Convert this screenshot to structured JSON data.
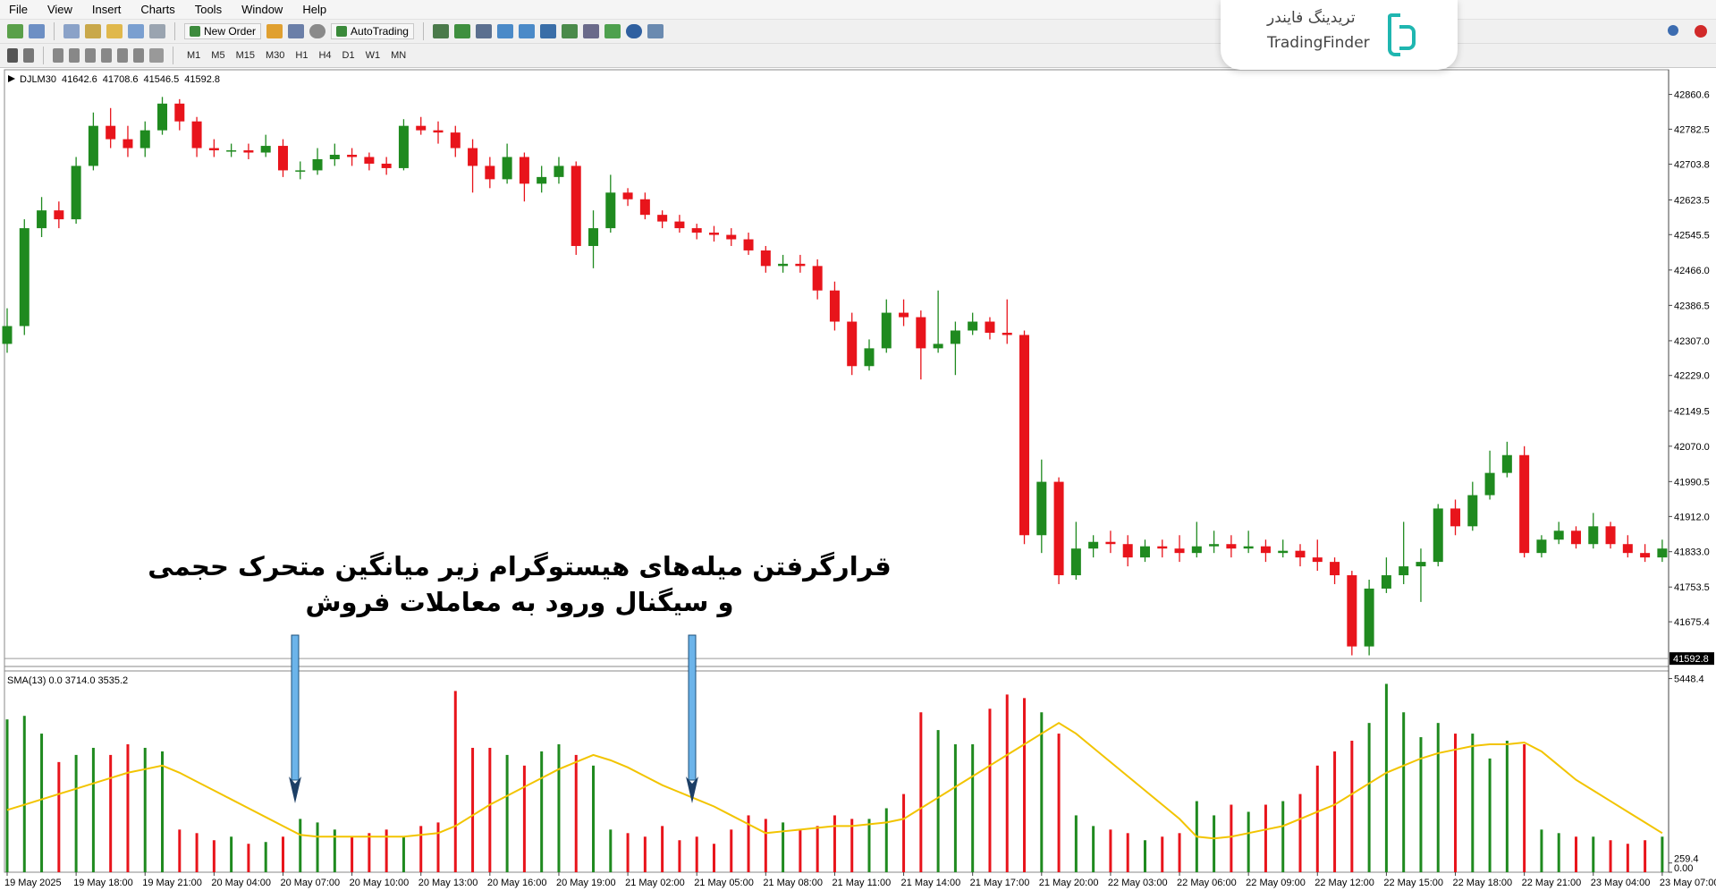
{
  "menu": [
    "File",
    "View",
    "Insert",
    "Charts",
    "Tools",
    "Window",
    "Help"
  ],
  "toolbar": {
    "new_order": "New Order",
    "autotrading": "AutoTrading"
  },
  "timeframes": [
    "M1",
    "M5",
    "M15",
    "M30",
    "H1",
    "H4",
    "D1",
    "W1",
    "MN"
  ],
  "logo": {
    "name_fa": "تریدینگ فایندر",
    "name_en": "TradingFinder"
  },
  "annotation": {
    "line1": "قرارگرفتن میله‌های هیستوگرام زیر میانگین متحرک حجمی",
    "line2": "و سیگنال ورود به معاملات فروش"
  },
  "chart_data": [
    {
      "type": "candlestick",
      "symbol": "DJLM30",
      "header_values": [
        41642.6,
        41708.6,
        41546.5,
        41592.8
      ],
      "up_color": "#1f8a1f",
      "down_color": "#e8141b",
      "last_price": 41592.8,
      "ylim": [
        41577,
        42912
      ],
      "yticks": [
        42860.6,
        42782.5,
        42703.8,
        42623.5,
        42545.5,
        {
          "value": 42466,
          "label": "42466.0"
        },
        42386.5,
        {
          "value": 42307,
          "label": "42307.0"
        },
        {
          "value": 42229,
          "label": "42229.0"
        },
        42149.5,
        {
          "value": 42070,
          "label": "42070.0"
        },
        41990.5,
        {
          "value": 41912,
          "label": "41912.0"
        },
        {
          "value": 41833,
          "label": "41833.0"
        },
        41753.5,
        41675.4
      ],
      "ohlc": [
        [
          42300,
          42380,
          42280,
          42340
        ],
        [
          42340,
          42580,
          42320,
          42560
        ],
        [
          42560,
          42630,
          42540,
          42600
        ],
        [
          42600,
          42620,
          42560,
          42580
        ],
        [
          42580,
          42720,
          42570,
          42700
        ],
        [
          42700,
          42820,
          42690,
          42790
        ],
        [
          42790,
          42830,
          42740,
          42760
        ],
        [
          42760,
          42790,
          42720,
          42740
        ],
        [
          42740,
          42800,
          42720,
          42780
        ],
        [
          42780,
          42855,
          42770,
          42840
        ],
        [
          42840,
          42850,
          42780,
          42800
        ],
        [
          42800,
          42810,
          42720,
          42740
        ],
        [
          42740,
          42760,
          42720,
          42735
        ],
        [
          42735,
          42750,
          42720,
          42735
        ],
        [
          42735,
          42750,
          42715,
          42730
        ],
        [
          42730,
          42770,
          42720,
          42745
        ],
        [
          42745,
          42760,
          42675,
          42690
        ],
        [
          42690,
          42710,
          42670,
          42690
        ],
        [
          42690,
          42740,
          42680,
          42715
        ],
        [
          42715,
          42750,
          42700,
          42725
        ],
        [
          42725,
          42740,
          42700,
          42720
        ],
        [
          42720,
          42730,
          42690,
          42705
        ],
        [
          42705,
          42720,
          42680,
          42695
        ],
        [
          42695,
          42805,
          42690,
          42790
        ],
        [
          42790,
          42810,
          42770,
          42780
        ],
        [
          42780,
          42800,
          42750,
          42775
        ],
        [
          42775,
          42790,
          42720,
          42740
        ],
        [
          42740,
          42760,
          42640,
          42700
        ],
        [
          42700,
          42720,
          42650,
          42670
        ],
        [
          42670,
          42750,
          42660,
          42720
        ],
        [
          42720,
          42730,
          42620,
          42660
        ],
        [
          42660,
          42700,
          42640,
          42675
        ],
        [
          42675,
          42720,
          42660,
          42700
        ],
        [
          42700,
          42710,
          42500,
          42520
        ],
        [
          42520,
          42600,
          42470,
          42560
        ],
        [
          42560,
          42680,
          42550,
          42640
        ],
        [
          42640,
          42650,
          42610,
          42625
        ],
        [
          42625,
          42640,
          42580,
          42590
        ],
        [
          42590,
          42600,
          42560,
          42575
        ],
        [
          42575,
          42590,
          42550,
          42560
        ],
        [
          42560,
          42570,
          42535,
          42550
        ],
        [
          42550,
          42565,
          42530,
          42545
        ],
        [
          42545,
          42560,
          42520,
          42535
        ],
        [
          42535,
          42550,
          42500,
          42510
        ],
        [
          42510,
          42520,
          42460,
          42475
        ],
        [
          42475,
          42500,
          42460,
          42480
        ],
        [
          42480,
          42500,
          42460,
          42475
        ],
        [
          42475,
          42490,
          42400,
          42420
        ],
        [
          42420,
          42440,
          42330,
          42350
        ],
        [
          42350,
          42370,
          42230,
          42250
        ],
        [
          42250,
          42310,
          42240,
          42290
        ],
        [
          42290,
          42400,
          42280,
          42370
        ],
        [
          42370,
          42400,
          42340,
          42360
        ],
        [
          42360,
          42375,
          42220,
          42290
        ],
        [
          42290,
          42420,
          42280,
          42300
        ],
        [
          42300,
          42350,
          42230,
          42330
        ],
        [
          42330,
          42370,
          42320,
          42350
        ],
        [
          42350,
          42360,
          42310,
          42325
        ],
        [
          42325,
          42400,
          42300,
          42320
        ],
        [
          42320,
          42330,
          41850,
          41870
        ],
        [
          41870,
          42040,
          41830,
          41990
        ],
        [
          41990,
          42000,
          41760,
          41780
        ],
        [
          41780,
          41900,
          41770,
          41840
        ],
        [
          41840,
          41870,
          41820,
          41855
        ],
        [
          41855,
          41880,
          41830,
          41850
        ],
        [
          41850,
          41870,
          41800,
          41820
        ],
        [
          41820,
          41860,
          41810,
          41845
        ],
        [
          41845,
          41860,
          41820,
          41840
        ],
        [
          41840,
          41870,
          41810,
          41830
        ],
        [
          41830,
          41900,
          41820,
          41845
        ],
        [
          41845,
          41880,
          41830,
          41850
        ],
        [
          41850,
          41870,
          41820,
          41840
        ],
        [
          41840,
          41880,
          41830,
          41845
        ],
        [
          41845,
          41860,
          41810,
          41830
        ],
        [
          41830,
          41860,
          41820,
          41835
        ],
        [
          41835,
          41850,
          41800,
          41820
        ],
        [
          41820,
          41860,
          41790,
          41810
        ],
        [
          41810,
          41820,
          41760,
          41780
        ],
        [
          41780,
          41790,
          41600,
          41620
        ],
        [
          41620,
          41770,
          41600,
          41750
        ],
        [
          41750,
          41820,
          41740,
          41780
        ],
        [
          41780,
          41900,
          41760,
          41800
        ],
        [
          41800,
          41840,
          41720,
          41810
        ],
        [
          41810,
          41940,
          41800,
          41930
        ],
        [
          41930,
          41950,
          41870,
          41890
        ],
        [
          41890,
          41990,
          41880,
          41960
        ],
        [
          41960,
          42060,
          41950,
          42010
        ],
        [
          42010,
          42080,
          42000,
          42050
        ],
        [
          42050,
          42070,
          41820,
          41830
        ],
        [
          41830,
          41870,
          41820,
          41860
        ],
        [
          41860,
          41900,
          41850,
          41880
        ],
        [
          41880,
          41890,
          41840,
          41850
        ],
        [
          41850,
          41920,
          41840,
          41890
        ],
        [
          41890,
          41900,
          41840,
          41850
        ],
        [
          41850,
          41870,
          41820,
          41830
        ],
        [
          41830,
          41850,
          41810,
          41820
        ],
        [
          41820,
          41860,
          41810,
          41840
        ]
      ]
    },
    {
      "type": "bar",
      "title": "SMA(13) 0.0 3714.0 3535.2",
      "ylim": [
        0,
        5664
      ],
      "yticks": [
        5448.4,
        259.4,
        {
          "value": 0,
          "label": "0.00"
        }
      ],
      "categories": [
        "19 May 2025",
        null,
        null,
        null,
        "19 May 18:00",
        null,
        null,
        null,
        "19 May 21:00",
        null,
        null,
        null,
        "20 May 04:00",
        null,
        null,
        null,
        "20 May 07:00",
        null,
        null,
        null,
        "20 May 10:00",
        null,
        null,
        null,
        "20 May 13:00",
        null,
        null,
        null,
        "20 May 16:00",
        null,
        null,
        null,
        "20 May 19:00",
        null,
        null,
        null,
        "21 May 02:00",
        null,
        null,
        null,
        "21 May 05:00",
        null,
        null,
        null,
        "21 May 08:00",
        null,
        null,
        null,
        "21 May 11:00",
        null,
        null,
        null,
        "21 May 14:00",
        null,
        null,
        null,
        "21 May 17:00",
        null,
        null,
        null,
        "21 May 20:00",
        null,
        null,
        null,
        "22 May 03:00",
        null,
        null,
        null,
        "22 May 06:00",
        null,
        null,
        null,
        "22 May 09:00",
        null,
        null,
        null,
        "22 May 12:00",
        null,
        null,
        null,
        "22 May 15:00",
        null,
        null,
        null,
        "22 May 18:00",
        null,
        null,
        null,
        "22 May 21:00",
        null,
        null,
        null,
        "23 May 04:00",
        null,
        null,
        null,
        "23 May 07:00"
      ],
      "values": [
        4300,
        4400,
        3900,
        3100,
        3300,
        3500,
        3300,
        3600,
        3500,
        3400,
        1200,
        1100,
        900,
        1000,
        800,
        850,
        1000,
        1500,
        1400,
        1200,
        1000,
        1100,
        1200,
        1000,
        1300,
        1400,
        5100,
        3500,
        3500,
        3300,
        3000,
        3400,
        3600,
        3300,
        3000,
        1200,
        1100,
        1000,
        1300,
        900,
        1000,
        800,
        1200,
        1600,
        1500,
        1400,
        1200,
        1300,
        1600,
        1500,
        1500,
        1800,
        2200,
        4500,
        4000,
        3600,
        3600,
        4600,
        5000,
        4900,
        4500,
        3900,
        1600,
        1300,
        1200,
        1100,
        900,
        1000,
        1100,
        2000,
        1600,
        1900,
        1700,
        1900,
        2000,
        2200,
        3000,
        3400,
        3700,
        4200,
        5300,
        4500,
        3800,
        4200,
        3900,
        3900,
        3200,
        3700,
        3600,
        1200,
        1100,
        1000,
        1000,
        900,
        800,
        900,
        1000
      ],
      "sma": {
        "color": "#f2c400",
        "values": [
          1750,
          1900,
          2050,
          2200,
          2350,
          2500,
          2650,
          2800,
          2900,
          3000,
          2800,
          2550,
          2300,
          2050,
          1800,
          1550,
          1300,
          1050,
          1000,
          1000,
          1000,
          1000,
          1000,
          1000,
          1050,
          1100,
          1300,
          1600,
          1900,
          2150,
          2400,
          2650,
          2900,
          3100,
          3300,
          3150,
          2950,
          2700,
          2450,
          2250,
          2050,
          1850,
          1600,
          1350,
          1100,
          1150,
          1200,
          1250,
          1300,
          1300,
          1350,
          1400,
          1500,
          1800,
          2100,
          2400,
          2700,
          3000,
          3300,
          3600,
          3900,
          4200,
          3900,
          3500,
          3100,
          2700,
          2300,
          1900,
          1500,
          1000,
          950,
          1000,
          1100,
          1200,
          1300,
          1500,
          1700,
          1900,
          2200,
          2500,
          2800,
          3000,
          3200,
          3350,
          3450,
          3550,
          3600,
          3600,
          3650,
          3400,
          3000,
          2600,
          2300,
          2000,
          1700,
          1400,
          1100
        ]
      }
    }
  ]
}
